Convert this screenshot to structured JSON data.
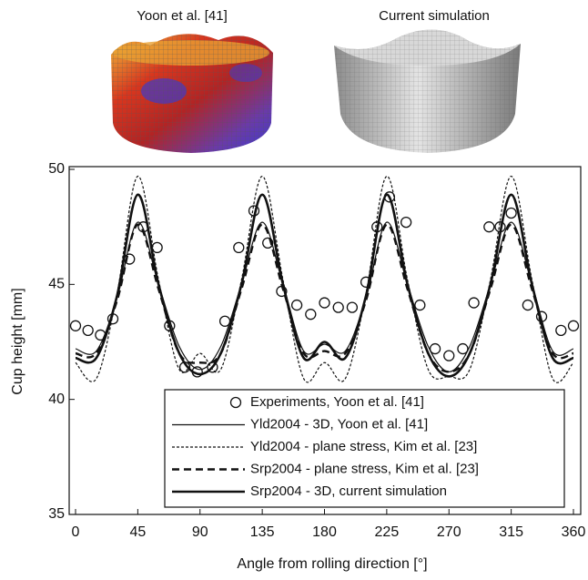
{
  "figures": [
    {
      "caption": "Yoon et al. [41]"
    },
    {
      "caption": "Current simulation"
    }
  ],
  "chart_data": {
    "type": "line",
    "xlabel": "Angle from rolling direction [°]",
    "ylabel": "Cup height [mm]",
    "xlim": [
      0,
      360
    ],
    "xticks": [
      0,
      45,
      90,
      135,
      180,
      225,
      270,
      315,
      360
    ],
    "ylim": [
      35,
      50
    ],
    "yticks": [
      35,
      40,
      45,
      50
    ],
    "x": [
      0,
      15,
      30,
      45,
      60,
      75,
      90,
      105,
      120,
      135,
      150,
      165,
      180,
      195,
      210,
      225,
      240,
      255,
      270,
      285,
      300,
      315,
      330,
      345,
      360
    ],
    "series": [
      {
        "name": "Experiments, Yoon et al. [41]",
        "color": "#111111",
        "style": "marker",
        "x": [
          0,
          9,
          18,
          27,
          39,
          49,
          59,
          68,
          79,
          88,
          99,
          108,
          118,
          129,
          139,
          149,
          160,
          170,
          180,
          190,
          200,
          210,
          218,
          227,
          239,
          249,
          260,
          270,
          280,
          288,
          299,
          307,
          315,
          327,
          337,
          351,
          360
        ],
        "values": [
          43.2,
          43.0,
          42.8,
          43.5,
          46.1,
          47.5,
          46.6,
          43.2,
          41.4,
          41.2,
          41.4,
          43.4,
          46.6,
          48.2,
          46.8,
          44.7,
          44.1,
          43.7,
          44.2,
          44.0,
          44.0,
          45.1,
          47.5,
          48.8,
          47.7,
          44.1,
          42.2,
          41.9,
          42.2,
          44.2,
          47.5,
          47.5,
          48.1,
          44.1,
          43.6,
          43.0,
          43.2
        ]
      },
      {
        "name": "Yld2004 - 3D, Yoon et al. [41]",
        "color": "#111111",
        "style": "solid",
        "width": 1.2,
        "values": [
          42.2,
          42.1,
          44.4,
          47.7,
          45.0,
          42.3,
          41.3,
          42.3,
          45.0,
          47.7,
          45.0,
          42.1,
          42.4,
          42.1,
          44.4,
          47.7,
          45.0,
          42.3,
          41.2,
          42.3,
          45.0,
          47.7,
          45.0,
          42.1,
          42.2
        ]
      },
      {
        "name": "Yld2004 - plane stress, Kim et al. [23]",
        "color": "#111111",
        "style": "dotted",
        "width": 1.2,
        "values": [
          41.6,
          40.9,
          44.6,
          49.7,
          45.2,
          41.3,
          42.0,
          41.3,
          45.2,
          49.7,
          45.2,
          40.9,
          41.6,
          40.9,
          44.6,
          49.7,
          45.2,
          41.3,
          41.0,
          41.3,
          45.2,
          49.7,
          45.2,
          40.9,
          41.6
        ]
      },
      {
        "name": "Srp2004 - plane stress, Kim et al. [23]",
        "color": "#111111",
        "style": "dashed",
        "width": 2.4,
        "values": [
          42.0,
          42.0,
          44.3,
          47.6,
          44.8,
          42.0,
          41.6,
          42.0,
          44.8,
          47.6,
          44.8,
          42.0,
          42.1,
          42.0,
          44.3,
          47.6,
          44.8,
          42.0,
          41.2,
          42.0,
          44.8,
          47.6,
          44.8,
          42.0,
          42.0
        ]
      },
      {
        "name": "Srp2004 - 3D, current simulation",
        "color": "#111111",
        "style": "solid",
        "width": 2.6,
        "values": [
          41.8,
          41.8,
          44.5,
          48.9,
          45.0,
          42.0,
          41.1,
          42.0,
          45.0,
          48.9,
          45.0,
          41.8,
          42.5,
          41.8,
          44.5,
          48.9,
          45.0,
          42.0,
          41.0,
          42.0,
          45.0,
          48.9,
          45.0,
          41.8,
          41.8
        ]
      }
    ]
  }
}
